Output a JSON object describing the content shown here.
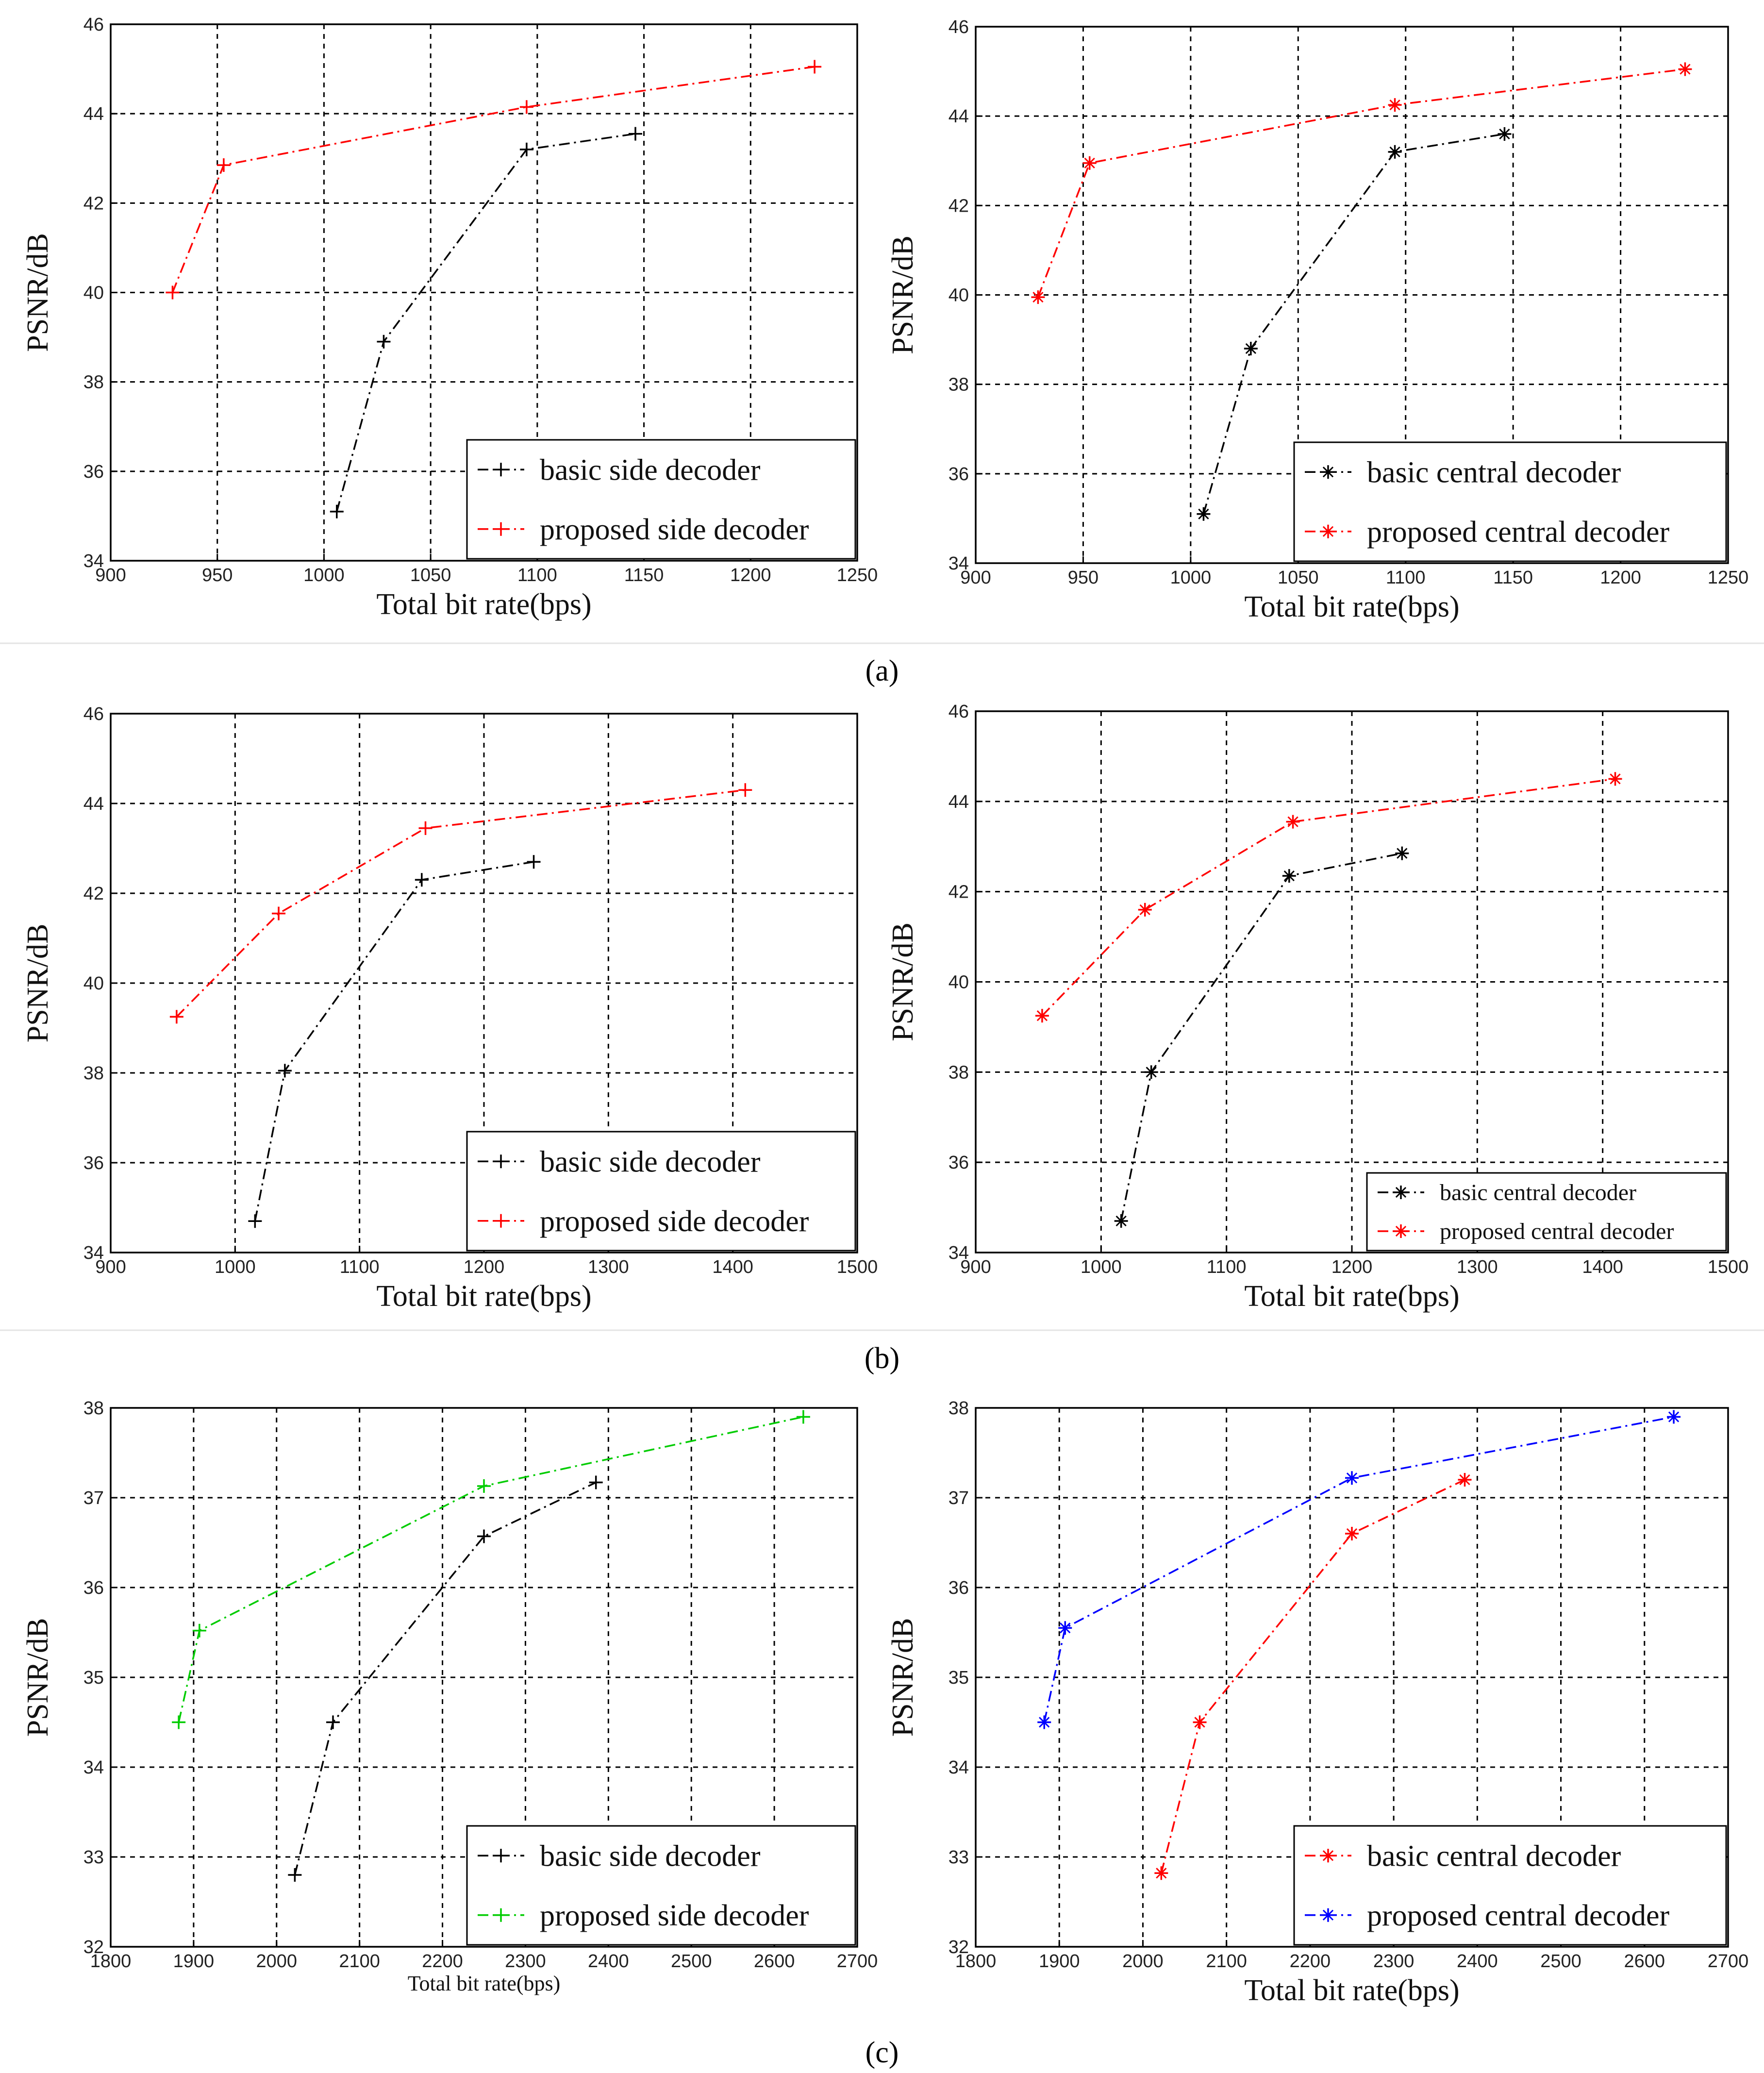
{
  "captions": [
    "(a)",
    "(b)",
    "(c)"
  ],
  "colors": {
    "black": "#000000",
    "red": "#ff0000",
    "green": "#00cc00",
    "blue": "#0000ff"
  },
  "chart_data": [
    {
      "type": "line",
      "panel": "a-left",
      "xlabel": "Total bit rate(bps)",
      "ylabel": "PSNR/dB",
      "xlim": [
        900,
        1250
      ],
      "ylim": [
        34,
        46
      ],
      "xticks": [
        "900",
        "950",
        "1000",
        "1050",
        "1100",
        "1150",
        "1200",
        "1250"
      ],
      "yticks": [
        "34",
        "36",
        "38",
        "40",
        "42",
        "44",
        "46"
      ],
      "legend": "bottom-right",
      "series": [
        {
          "name": "basic side decoder",
          "color": "black",
          "marker": "+",
          "x": [
            1006,
            1028,
            1095,
            1146
          ],
          "y": [
            35.1,
            38.9,
            43.2,
            43.55
          ]
        },
        {
          "name": "proposed side decoder",
          "color": "red",
          "marker": "+",
          "x": [
            929,
            953,
            1095,
            1230
          ],
          "y": [
            40.0,
            42.85,
            44.15,
            45.05
          ]
        }
      ]
    },
    {
      "type": "line",
      "panel": "a-right",
      "xlabel": "Total bit rate(bps)",
      "ylabel": "PSNR/dB",
      "xlim": [
        900,
        1250
      ],
      "ylim": [
        34,
        46
      ],
      "xticks": [
        "900",
        "950",
        "1000",
        "1050",
        "1100",
        "1150",
        "1200",
        "1250"
      ],
      "yticks": [
        "34",
        "36",
        "38",
        "40",
        "42",
        "44",
        "46"
      ],
      "legend": "bottom-right",
      "series": [
        {
          "name": "basic central decoder",
          "color": "black",
          "marker": "*",
          "x": [
            1006,
            1028,
            1095,
            1146
          ],
          "y": [
            35.1,
            38.8,
            43.2,
            43.6
          ]
        },
        {
          "name": "proposed central decoder",
          "color": "red",
          "marker": "*",
          "x": [
            929,
            953,
            1095,
            1230
          ],
          "y": [
            39.95,
            42.95,
            44.25,
            45.05
          ]
        }
      ]
    },
    {
      "type": "line",
      "panel": "b-left",
      "xlabel": "Total bit rate(bps)",
      "ylabel": "PSNR/dB",
      "xlim": [
        900,
        1500
      ],
      "ylim": [
        34,
        46
      ],
      "xticks": [
        "900",
        "1000",
        "1100",
        "1200",
        "1300",
        "1400",
        "1500"
      ],
      "yticks": [
        "34",
        "36",
        "38",
        "40",
        "42",
        "44",
        "46"
      ],
      "legend": "bottom-right",
      "series": [
        {
          "name": "basic side decoder",
          "color": "black",
          "marker": "+",
          "x": [
            1016,
            1040,
            1150,
            1240
          ],
          "y": [
            34.7,
            38.05,
            42.3,
            42.7
          ]
        },
        {
          "name": "proposed side decoder",
          "color": "red",
          "marker": "+",
          "x": [
            953,
            1035,
            1153,
            1410
          ],
          "y": [
            39.25,
            41.55,
            43.45,
            44.3
          ]
        }
      ]
    },
    {
      "type": "line",
      "panel": "b-right",
      "xlabel": "Total bit rate(bps)",
      "ylabel": "PSNR/dB",
      "xlim": [
        900,
        1500
      ],
      "ylim": [
        34,
        46
      ],
      "xticks": [
        "900",
        "1000",
        "1100",
        "1200",
        "1300",
        "1400",
        "1500"
      ],
      "yticks": [
        "34",
        "36",
        "38",
        "40",
        "42",
        "44",
        "46"
      ],
      "legend": "bottom-right",
      "series": [
        {
          "name": "basic central decoder",
          "color": "black",
          "marker": "*",
          "x": [
            1016,
            1040,
            1150,
            1240
          ],
          "y": [
            34.7,
            38.0,
            42.35,
            42.85
          ]
        },
        {
          "name": "proposed central decoder",
          "color": "red",
          "marker": "*",
          "x": [
            953,
            1035,
            1153,
            1410
          ],
          "y": [
            39.25,
            41.6,
            43.55,
            44.5
          ]
        }
      ]
    },
    {
      "type": "line",
      "panel": "c-left",
      "xlabel": "Total bit rate(bps)",
      "ylabel": "PSNR/dB",
      "xlim": [
        1800,
        2700
      ],
      "ylim": [
        32,
        38
      ],
      "xticks": [
        "1800",
        "1900",
        "2000",
        "2100",
        "2200",
        "2300",
        "2400",
        "2500",
        "2600",
        "2700"
      ],
      "yticks": [
        "32",
        "33",
        "34",
        "35",
        "36",
        "37",
        "38"
      ],
      "legend": "bottom-right",
      "series": [
        {
          "name": "basic side decoder",
          "color": "black",
          "marker": "+",
          "x": [
            2022,
            2068,
            2250,
            2385
          ],
          "y": [
            32.8,
            34.5,
            36.57,
            37.17
          ]
        },
        {
          "name": "proposed side decoder",
          "color": "green",
          "marker": "+",
          "x": [
            1882,
            1907,
            2250,
            2635
          ],
          "y": [
            34.5,
            35.52,
            37.13,
            37.9
          ]
        }
      ]
    },
    {
      "type": "line",
      "panel": "c-right",
      "xlabel": "Total bit rate(bps)",
      "ylabel": "PSNR/dB",
      "xlim": [
        1800,
        2700
      ],
      "ylim": [
        32,
        38
      ],
      "xticks": [
        "1800",
        "1900",
        "2000",
        "2100",
        "2200",
        "2300",
        "2400",
        "2500",
        "2600",
        "2700"
      ],
      "yticks": [
        "32",
        "33",
        "34",
        "35",
        "36",
        "37",
        "38"
      ],
      "legend": "bottom-right",
      "series": [
        {
          "name": "basic central decoder",
          "color": "red",
          "marker": "*",
          "x": [
            2022,
            2068,
            2250,
            2385
          ],
          "y": [
            32.82,
            34.5,
            36.6,
            37.2
          ]
        },
        {
          "name": "proposed central decoder",
          "color": "blue",
          "marker": "*",
          "x": [
            1882,
            1907,
            2250,
            2635
          ],
          "y": [
            34.5,
            35.55,
            37.22,
            37.9
          ]
        }
      ]
    }
  ]
}
